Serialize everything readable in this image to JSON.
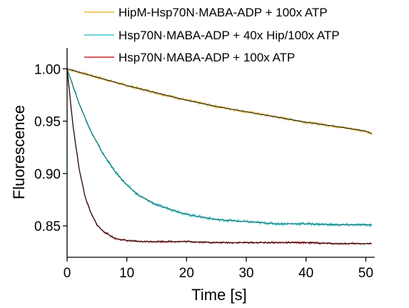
{
  "chart_data": {
    "type": "line",
    "xlabel": "Time [s]",
    "ylabel": "Fluorescence",
    "xlim": [
      0,
      51.5
    ],
    "ylim": [
      0.82,
      1.02
    ],
    "xticks": [
      0,
      10,
      20,
      30,
      40,
      50
    ],
    "xtick_labels": [
      "0",
      "10",
      "20",
      "30",
      "40",
      "50"
    ],
    "yticks": [
      0.85,
      0.9,
      0.95,
      1.0
    ],
    "ytick_labels": [
      "0.85",
      "0.90",
      "0.95",
      "1.00"
    ],
    "grid": false,
    "legend_position": "top-right",
    "series": [
      {
        "name": "HipM-Hsp70N·MABA-ADP + 100x ATP",
        "color": "#e8b830",
        "fit_color": "#1a1a1a",
        "x": [
          0,
          5,
          10,
          15,
          20,
          25,
          30,
          35,
          40,
          45,
          50,
          51
        ],
        "values": [
          1.0,
          0.992,
          0.984,
          0.977,
          0.97,
          0.964,
          0.959,
          0.954,
          0.949,
          0.945,
          0.9405,
          0.938
        ]
      },
      {
        "name": "Hsp70N·MABA-ADP + 40x Hip/100x ATP",
        "color": "#3cc3c8",
        "fit_color": "#1a6e6e",
        "x": [
          0,
          2,
          4,
          6,
          8,
          10,
          12,
          15,
          20,
          25,
          30,
          35,
          40,
          45,
          51
        ],
        "values": [
          1.0,
          0.967,
          0.94,
          0.919,
          0.902,
          0.889,
          0.879,
          0.87,
          0.861,
          0.856,
          0.854,
          0.852,
          0.852,
          0.851,
          0.851
        ]
      },
      {
        "name": "Hsp70N·MABA-ADP + 100x ATP",
        "color": "#c4282a",
        "fit_color": "#111111",
        "x": [
          0,
          1,
          2,
          3,
          4,
          5,
          6,
          8,
          10,
          12,
          15,
          20,
          25,
          30,
          35,
          40,
          45,
          51
        ],
        "values": [
          1.0,
          0.945,
          0.905,
          0.878,
          0.862,
          0.851,
          0.845,
          0.838,
          0.836,
          0.835,
          0.835,
          0.835,
          0.834,
          0.834,
          0.834,
          0.834,
          0.833,
          0.833
        ]
      }
    ]
  }
}
